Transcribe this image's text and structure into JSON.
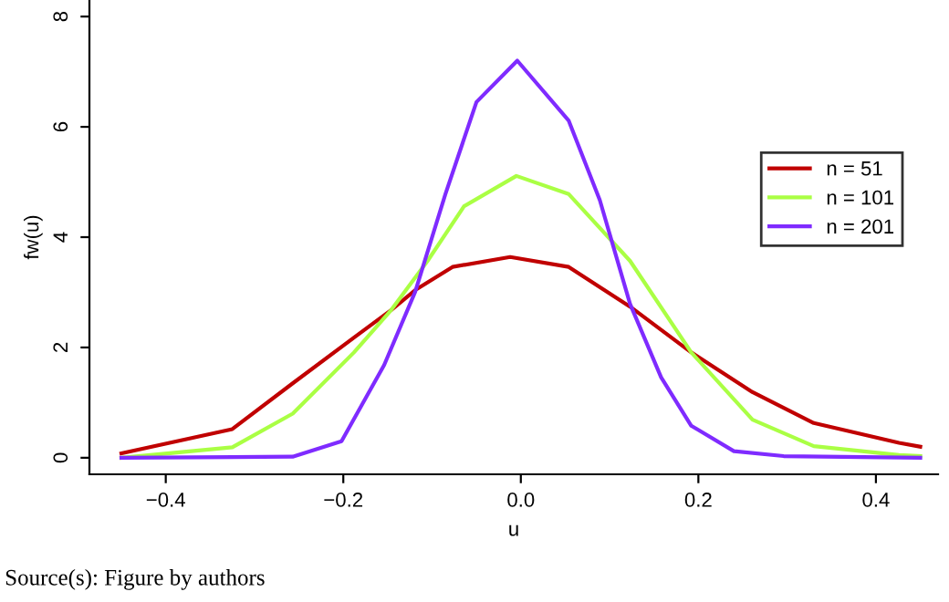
{
  "chart_data": {
    "type": "line",
    "xlabel": "u",
    "ylabel": "fw(u)",
    "annotations": [
      "Source(s): Figure by authors"
    ],
    "xlim": [
      -0.486,
      0.47
    ],
    "ylim": [
      -0.3,
      8.3
    ],
    "xticks": [
      {
        "value": -0.4,
        "label": "−0.4"
      },
      {
        "value": -0.2,
        "label": "−0.2"
      },
      {
        "value": 0,
        "label": "0.0"
      },
      0.2,
      0.4
    ],
    "yticks": [
      0,
      2,
      4,
      6,
      8
    ],
    "grid": false,
    "legend": "right",
    "marker": "none",
    "line_style": "solid",
    "series": [
      {
        "name": "n = 51",
        "color": "#c00000",
        "x": [
          -0.45,
          -0.325,
          -0.257,
          -0.188,
          -0.146,
          -0.119,
          -0.077,
          -0.012,
          0.054,
          0.123,
          0.192,
          0.261,
          0.33,
          0.426,
          0.45
        ],
        "values": [
          0.08,
          0.52,
          1.35,
          2.18,
          2.68,
          3.04,
          3.46,
          3.64,
          3.46,
          2.74,
          1.91,
          1.19,
          0.63,
          0.27,
          0.2
        ]
      },
      {
        "name": "n = 101",
        "color": "#aaff44",
        "x": [
          -0.45,
          -0.325,
          -0.257,
          -0.188,
          -0.146,
          -0.105,
          -0.064,
          -0.005,
          0.054,
          0.123,
          0.192,
          0.261,
          0.33,
          0.426,
          0.45
        ],
        "values": [
          0.0,
          0.19,
          0.8,
          1.91,
          2.68,
          3.57,
          4.56,
          5.11,
          4.78,
          3.57,
          1.91,
          0.69,
          0.21,
          0.05,
          0.03
        ]
      },
      {
        "name": "n = 201",
        "color": "#7f2bff",
        "x": [
          -0.45,
          -0.257,
          -0.202,
          -0.154,
          -0.119,
          -0.085,
          -0.05,
          -0.004,
          0.054,
          0.089,
          0.123,
          0.158,
          0.192,
          0.24,
          0.296,
          0.45
        ],
        "values": [
          0.0,
          0.02,
          0.3,
          1.68,
          3.01,
          4.78,
          6.45,
          7.2,
          6.11,
          4.67,
          2.79,
          1.46,
          0.58,
          0.12,
          0.03,
          0.0
        ]
      }
    ]
  }
}
